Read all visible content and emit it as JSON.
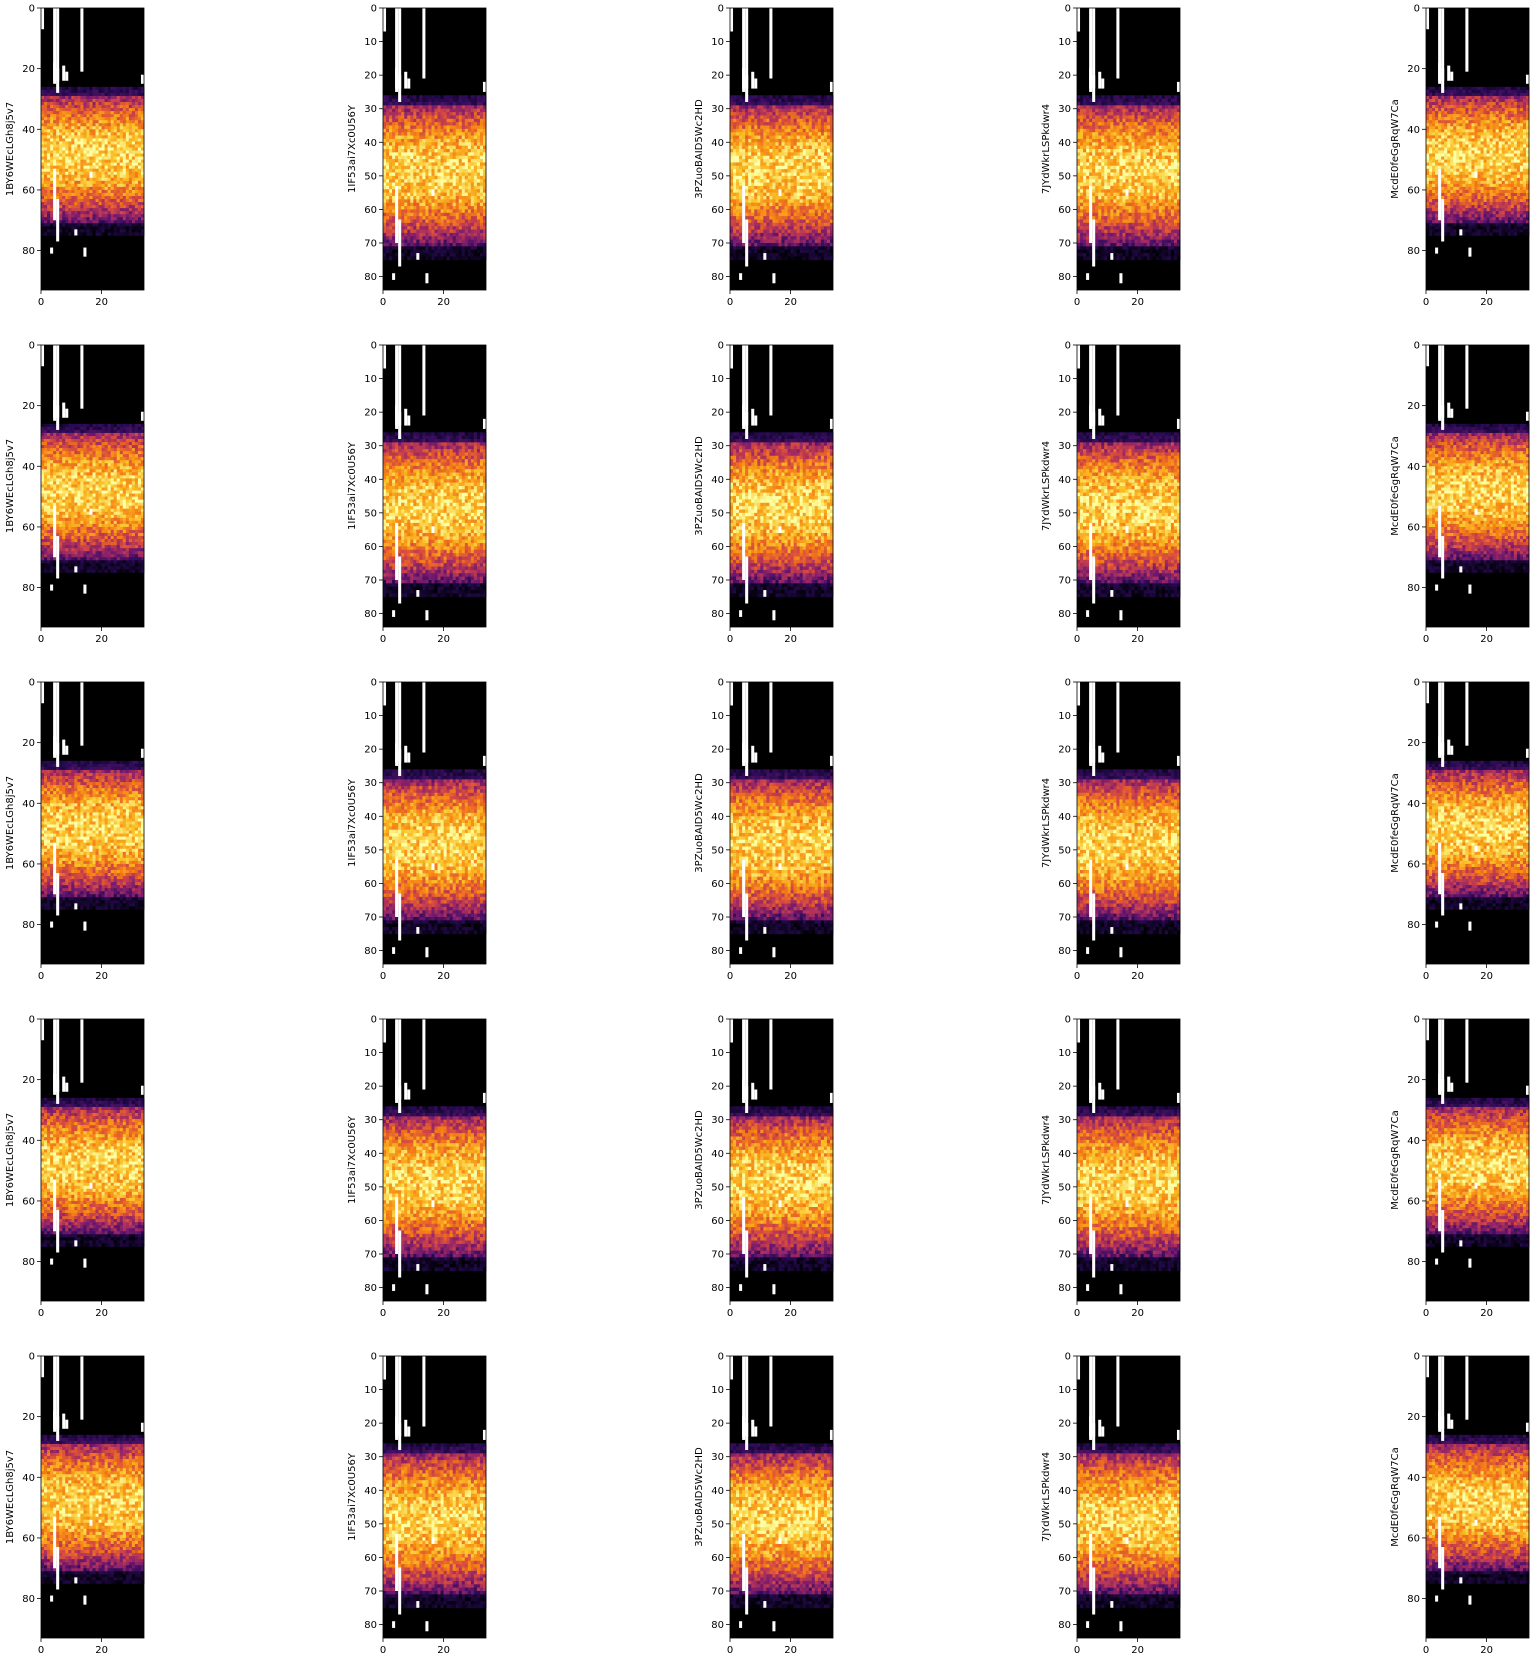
{
  "figure": {
    "background": "#ffffff",
    "colormap": "inferno",
    "mask_color": "#ffffff",
    "frame_color": "#000000"
  },
  "chart_data": {
    "type": "heatmap",
    "grid": {
      "rows": 5,
      "cols": 5
    },
    "columns": [
      {
        "ylabel": "1BY6WEcLGh8j5v7",
        "rows": 93,
        "ylim": [
          93,
          0
        ],
        "y_ticks": [
          0,
          20,
          40,
          60,
          80
        ],
        "xlim": [
          0,
          34
        ],
        "x_ticks": [
          0,
          20
        ]
      },
      {
        "ylabel": "1IF53ai7Xc0U56Y",
        "rows": 84,
        "ylim": [
          84,
          0
        ],
        "y_ticks": [
          0,
          10,
          20,
          30,
          40,
          50,
          60,
          70,
          80
        ],
        "xlim": [
          0,
          34
        ],
        "x_ticks": [
          0,
          20
        ]
      },
      {
        "ylabel": "3PZuoBAID5Wc2HD",
        "rows": 84,
        "ylim": [
          84,
          0
        ],
        "y_ticks": [
          0,
          10,
          20,
          30,
          40,
          50,
          60,
          70,
          80
        ],
        "xlim": [
          0,
          34
        ],
        "x_ticks": [
          0,
          20
        ]
      },
      {
        "ylabel": "7JYdWkrLSPkdwr4",
        "rows": 84,
        "ylim": [
          84,
          0
        ],
        "y_ticks": [
          0,
          10,
          20,
          30,
          40,
          50,
          60,
          70,
          80
        ],
        "xlim": [
          0,
          34
        ],
        "x_ticks": [
          0,
          20
        ]
      },
      {
        "ylabel": "McdE0feGgRqW7Ca",
        "rows": 93,
        "ylim": [
          93,
          0
        ],
        "y_ticks": [
          0,
          20,
          40,
          60,
          80
        ],
        "xlim": [
          0,
          34
        ],
        "x_ticks": [
          0,
          20
        ]
      }
    ],
    "band": {
      "start_row": 26,
      "end_row": 75,
      "peak_row": 48
    },
    "mask_columns": [
      0,
      4,
      5,
      13
    ],
    "grid_lines": false,
    "legend": "none"
  }
}
